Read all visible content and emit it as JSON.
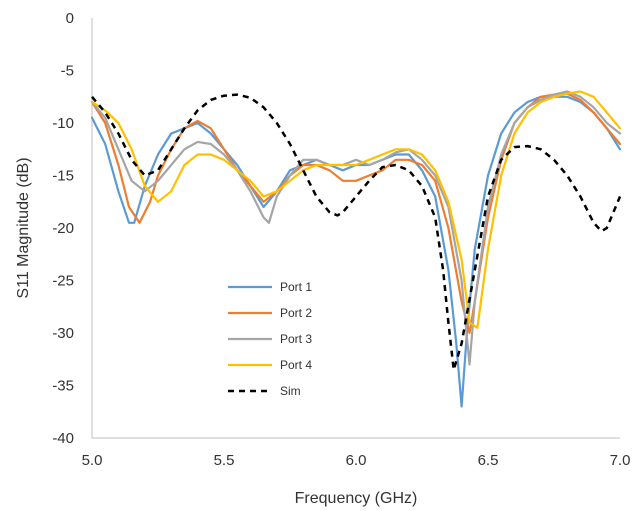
{
  "chart_data": {
    "type": "line",
    "title": "",
    "xlabel": "Frequency (GHz)",
    "ylabel": "S11 Magnitude (dB)",
    "xlim": [
      5.0,
      7.0
    ],
    "ylim": [
      -40,
      0
    ],
    "x_ticks": [
      "5.0",
      "5.5",
      "6.0",
      "6.5",
      "7.0"
    ],
    "y_ticks": [
      "0",
      "-5",
      "-10",
      "-15",
      "-20",
      "-25",
      "-30",
      "-35",
      "-40"
    ],
    "grid": false,
    "legend_position": "center-left",
    "series": [
      {
        "name": "Port 1",
        "color": "#5b9bd5",
        "dash": "solid",
        "points": [
          [
            5.0,
            -9.5
          ],
          [
            5.05,
            -12.0
          ],
          [
            5.1,
            -16.5
          ],
          [
            5.14,
            -19.5
          ],
          [
            5.16,
            -19.5
          ],
          [
            5.2,
            -16.0
          ],
          [
            5.25,
            -13.0
          ],
          [
            5.3,
            -11.0
          ],
          [
            5.35,
            -10.5
          ],
          [
            5.4,
            -10.0
          ],
          [
            5.45,
            -11.0
          ],
          [
            5.5,
            -12.5
          ],
          [
            5.55,
            -14.0
          ],
          [
            5.6,
            -16.0
          ],
          [
            5.65,
            -18.0
          ],
          [
            5.7,
            -16.5
          ],
          [
            5.75,
            -14.5
          ],
          [
            5.8,
            -14.0
          ],
          [
            5.85,
            -13.5
          ],
          [
            5.9,
            -14.0
          ],
          [
            5.95,
            -14.5
          ],
          [
            6.0,
            -14.0
          ],
          [
            6.05,
            -14.0
          ],
          [
            6.1,
            -13.5
          ],
          [
            6.15,
            -13.0
          ],
          [
            6.2,
            -13.0
          ],
          [
            6.25,
            -14.5
          ],
          [
            6.3,
            -17.0
          ],
          [
            6.35,
            -24.0
          ],
          [
            6.38,
            -31.0
          ],
          [
            6.4,
            -37.0
          ],
          [
            6.42,
            -30.0
          ],
          [
            6.45,
            -22.0
          ],
          [
            6.5,
            -15.0
          ],
          [
            6.55,
            -11.0
          ],
          [
            6.6,
            -9.0
          ],
          [
            6.65,
            -8.0
          ],
          [
            6.7,
            -7.5
          ],
          [
            6.75,
            -7.5
          ],
          [
            6.8,
            -7.5
          ],
          [
            6.85,
            -8.0
          ],
          [
            6.9,
            -9.0
          ],
          [
            6.95,
            -10.5
          ],
          [
            7.0,
            -12.5
          ]
        ]
      },
      {
        "name": "Port 2",
        "color": "#ed7d31",
        "dash": "solid",
        "points": [
          [
            5.0,
            -8.0
          ],
          [
            5.05,
            -10.0
          ],
          [
            5.1,
            -14.0
          ],
          [
            5.14,
            -18.0
          ],
          [
            5.18,
            -19.5
          ],
          [
            5.22,
            -17.5
          ],
          [
            5.25,
            -15.0
          ],
          [
            5.3,
            -12.5
          ],
          [
            5.35,
            -10.5
          ],
          [
            5.4,
            -9.8
          ],
          [
            5.45,
            -10.5
          ],
          [
            5.5,
            -12.5
          ],
          [
            5.55,
            -14.5
          ],
          [
            5.6,
            -16.0
          ],
          [
            5.65,
            -17.5
          ],
          [
            5.7,
            -16.5
          ],
          [
            5.75,
            -15.0
          ],
          [
            5.8,
            -14.0
          ],
          [
            5.85,
            -14.0
          ],
          [
            5.9,
            -14.5
          ],
          [
            5.95,
            -15.5
          ],
          [
            6.0,
            -15.5
          ],
          [
            6.05,
            -15.0
          ],
          [
            6.1,
            -14.5
          ],
          [
            6.15,
            -13.5
          ],
          [
            6.2,
            -13.5
          ],
          [
            6.25,
            -14.0
          ],
          [
            6.3,
            -15.5
          ],
          [
            6.35,
            -20.0
          ],
          [
            6.4,
            -27.0
          ],
          [
            6.43,
            -30.0
          ],
          [
            6.45,
            -27.0
          ],
          [
            6.5,
            -19.0
          ],
          [
            6.55,
            -13.5
          ],
          [
            6.6,
            -10.0
          ],
          [
            6.65,
            -8.5
          ],
          [
            6.7,
            -7.5
          ],
          [
            6.75,
            -7.3
          ],
          [
            6.8,
            -7.2
          ],
          [
            6.85,
            -7.8
          ],
          [
            6.9,
            -9.0
          ],
          [
            6.95,
            -10.5
          ],
          [
            7.0,
            -12.0
          ]
        ]
      },
      {
        "name": "Port 3",
        "color": "#a5a5a5",
        "dash": "solid",
        "points": [
          [
            5.0,
            -8.0
          ],
          [
            5.05,
            -9.5
          ],
          [
            5.1,
            -12.5
          ],
          [
            5.15,
            -15.5
          ],
          [
            5.2,
            -16.5
          ],
          [
            5.25,
            -15.5
          ],
          [
            5.3,
            -14.0
          ],
          [
            5.35,
            -12.5
          ],
          [
            5.4,
            -11.8
          ],
          [
            5.45,
            -12.0
          ],
          [
            5.5,
            -13.0
          ],
          [
            5.55,
            -14.5
          ],
          [
            5.6,
            -16.5
          ],
          [
            5.65,
            -19.0
          ],
          [
            5.67,
            -19.5
          ],
          [
            5.7,
            -17.0
          ],
          [
            5.75,
            -15.0
          ],
          [
            5.8,
            -13.5
          ],
          [
            5.85,
            -13.5
          ],
          [
            5.9,
            -14.0
          ],
          [
            5.95,
            -14.0
          ],
          [
            6.0,
            -13.5
          ],
          [
            6.05,
            -14.0
          ],
          [
            6.1,
            -13.5
          ],
          [
            6.15,
            -12.8
          ],
          [
            6.2,
            -12.5
          ],
          [
            6.25,
            -13.5
          ],
          [
            6.3,
            -15.0
          ],
          [
            6.35,
            -18.0
          ],
          [
            6.4,
            -25.0
          ],
          [
            6.43,
            -33.0
          ],
          [
            6.45,
            -27.0
          ],
          [
            6.5,
            -18.0
          ],
          [
            6.55,
            -13.0
          ],
          [
            6.6,
            -10.0
          ],
          [
            6.65,
            -8.5
          ],
          [
            6.7,
            -7.8
          ],
          [
            6.75,
            -7.3
          ],
          [
            6.8,
            -7.0
          ],
          [
            6.85,
            -7.5
          ],
          [
            6.9,
            -8.5
          ],
          [
            6.95,
            -10.0
          ],
          [
            7.0,
            -11.0
          ]
        ]
      },
      {
        "name": "Port 4",
        "color": "#ffc000",
        "dash": "solid",
        "points": [
          [
            5.0,
            -8.0
          ],
          [
            5.05,
            -8.8
          ],
          [
            5.1,
            -10.0
          ],
          [
            5.15,
            -12.5
          ],
          [
            5.2,
            -16.0
          ],
          [
            5.25,
            -17.5
          ],
          [
            5.3,
            -16.5
          ],
          [
            5.35,
            -14.0
          ],
          [
            5.4,
            -13.0
          ],
          [
            5.45,
            -13.0
          ],
          [
            5.5,
            -13.5
          ],
          [
            5.55,
            -14.5
          ],
          [
            5.6,
            -15.5
          ],
          [
            5.65,
            -17.0
          ],
          [
            5.7,
            -16.5
          ],
          [
            5.75,
            -15.5
          ],
          [
            5.8,
            -14.5
          ],
          [
            5.85,
            -14.0
          ],
          [
            5.9,
            -14.0
          ],
          [
            5.95,
            -14.0
          ],
          [
            6.0,
            -14.0
          ],
          [
            6.05,
            -13.5
          ],
          [
            6.1,
            -13.0
          ],
          [
            6.15,
            -12.5
          ],
          [
            6.2,
            -12.5
          ],
          [
            6.25,
            -13.0
          ],
          [
            6.3,
            -14.5
          ],
          [
            6.35,
            -17.5
          ],
          [
            6.4,
            -23.0
          ],
          [
            6.43,
            -29.0
          ],
          [
            6.46,
            -29.5
          ],
          [
            6.5,
            -22.0
          ],
          [
            6.55,
            -15.0
          ],
          [
            6.6,
            -11.0
          ],
          [
            6.65,
            -9.0
          ],
          [
            6.7,
            -8.0
          ],
          [
            6.75,
            -7.5
          ],
          [
            6.8,
            -7.2
          ],
          [
            6.85,
            -7.0
          ],
          [
            6.9,
            -7.5
          ],
          [
            6.95,
            -9.0
          ],
          [
            7.0,
            -10.5
          ]
        ]
      },
      {
        "name": "Sim",
        "color": "#000000",
        "dash": "dashed",
        "points": [
          [
            5.0,
            -7.5
          ],
          [
            5.05,
            -9.0
          ],
          [
            5.1,
            -11.0
          ],
          [
            5.15,
            -13.5
          ],
          [
            5.2,
            -15.0
          ],
          [
            5.25,
            -14.5
          ],
          [
            5.3,
            -12.5
          ],
          [
            5.35,
            -10.5
          ],
          [
            5.4,
            -8.8
          ],
          [
            5.45,
            -7.8
          ],
          [
            5.5,
            -7.4
          ],
          [
            5.55,
            -7.3
          ],
          [
            5.6,
            -7.6
          ],
          [
            5.65,
            -8.5
          ],
          [
            5.7,
            -10.0
          ],
          [
            5.75,
            -12.0
          ],
          [
            5.8,
            -14.5
          ],
          [
            5.85,
            -17.0
          ],
          [
            5.9,
            -18.5
          ],
          [
            5.93,
            -18.8
          ],
          [
            5.95,
            -18.5
          ],
          [
            6.0,
            -17.0
          ],
          [
            6.05,
            -15.5
          ],
          [
            6.1,
            -14.2
          ],
          [
            6.15,
            -14.0
          ],
          [
            6.2,
            -14.5
          ],
          [
            6.25,
            -16.0
          ],
          [
            6.3,
            -19.0
          ],
          [
            6.33,
            -24.0
          ],
          [
            6.35,
            -29.0
          ],
          [
            6.37,
            -33.5
          ],
          [
            6.4,
            -31.0
          ],
          [
            6.45,
            -24.0
          ],
          [
            6.5,
            -17.0
          ],
          [
            6.55,
            -13.5
          ],
          [
            6.6,
            -12.3
          ],
          [
            6.65,
            -12.2
          ],
          [
            6.7,
            -12.5
          ],
          [
            6.75,
            -13.5
          ],
          [
            6.8,
            -15.0
          ],
          [
            6.85,
            -17.0
          ],
          [
            6.9,
            -19.5
          ],
          [
            6.93,
            -20.3
          ],
          [
            6.95,
            -20.0
          ],
          [
            7.0,
            -17.0
          ]
        ]
      }
    ]
  }
}
